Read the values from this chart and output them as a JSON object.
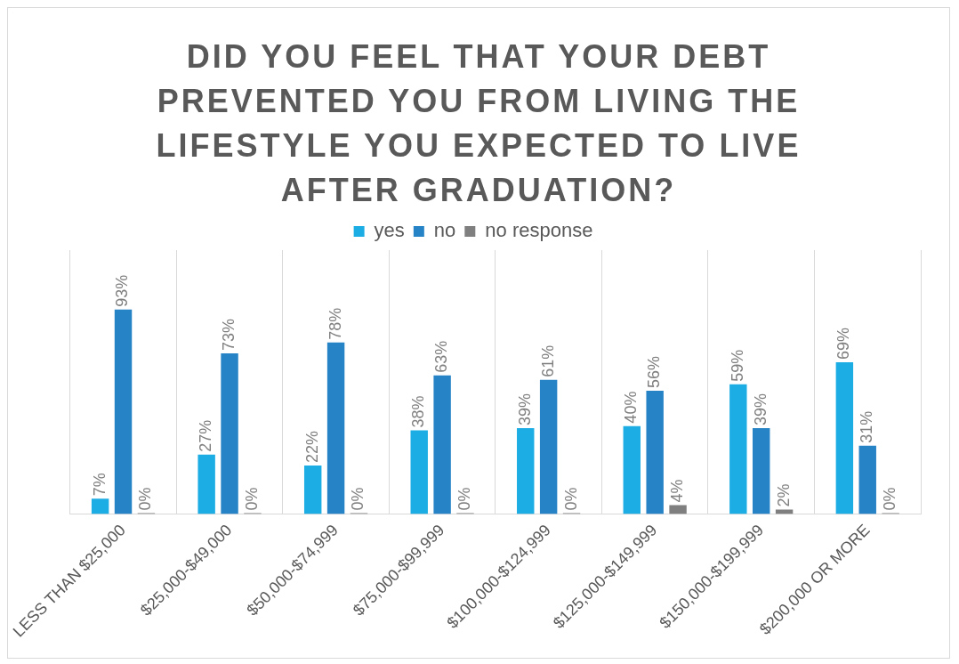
{
  "chart_data": {
    "type": "bar",
    "title": "DID YOU FEEL THAT YOUR DEBT PREVENTED YOU FROM LIVING THE LIFESTYLE YOU EXPECTED TO LIVE AFTER GRADUATION?",
    "categories": [
      "LESS THAN $25,000",
      "$25,000-$49,000",
      "$50,000-$74,999",
      "$75,000-$99,999",
      "$100,000-$124,999",
      "$125,000-$149,999",
      "$150,000-$199,999",
      "$200,000 OR MORE"
    ],
    "series": [
      {
        "name": "yes",
        "color": "#1cade4",
        "values": [
          7,
          27,
          22,
          38,
          39,
          40,
          59,
          69
        ],
        "value_labels": [
          "7%",
          "27%",
          "22%",
          "38%",
          "39%",
          "40%",
          "59%",
          "69%"
        ]
      },
      {
        "name": "no",
        "color": "#2683c6",
        "values": [
          93,
          73,
          78,
          63,
          61,
          56,
          39,
          31
        ],
        "value_labels": [
          "93%",
          "73%",
          "78%",
          "63%",
          "61%",
          "56%",
          "39%",
          "31%"
        ]
      },
      {
        "name": "no response",
        "color": "#7f7f7f",
        "values": [
          0,
          0,
          0,
          0,
          0,
          4,
          2,
          0
        ],
        "value_labels": [
          "0%",
          "0%",
          "0%",
          "0%",
          "0%",
          "4%",
          "2%",
          "0%"
        ]
      }
    ],
    "legend": "top",
    "grid": "x",
    "tick_labels": "x"
  }
}
